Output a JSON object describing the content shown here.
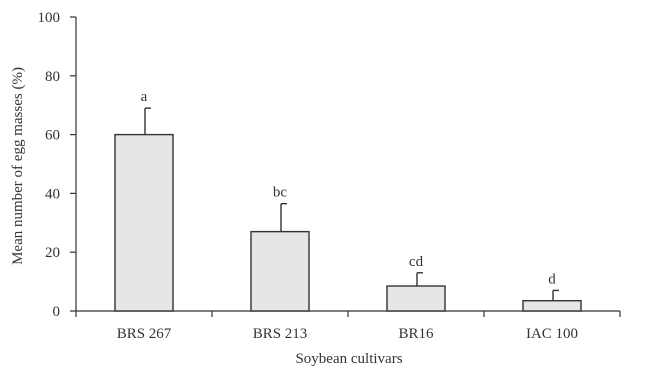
{
  "chart_data": {
    "type": "bar",
    "title": "",
    "xlabel": "Soybean cultivars",
    "ylabel": "Mean number of egg masses (%)",
    "categories": [
      "BRS 267",
      "BRS 213",
      "BR16",
      "IAC 100"
    ],
    "values": [
      60,
      27,
      8.5,
      3.5
    ],
    "error_upper": [
      69,
      36.5,
      13,
      7
    ],
    "significance_letters": [
      "a",
      "bc",
      "cd",
      "d"
    ],
    "ylim": [
      0,
      100
    ],
    "yticks": [
      0,
      20,
      40,
      60,
      80,
      100
    ],
    "grid": false,
    "legend": "none",
    "colors": {
      "bar_fill": "#e6e6e6",
      "bar_stroke": "#333333",
      "axis": "#333333"
    }
  }
}
